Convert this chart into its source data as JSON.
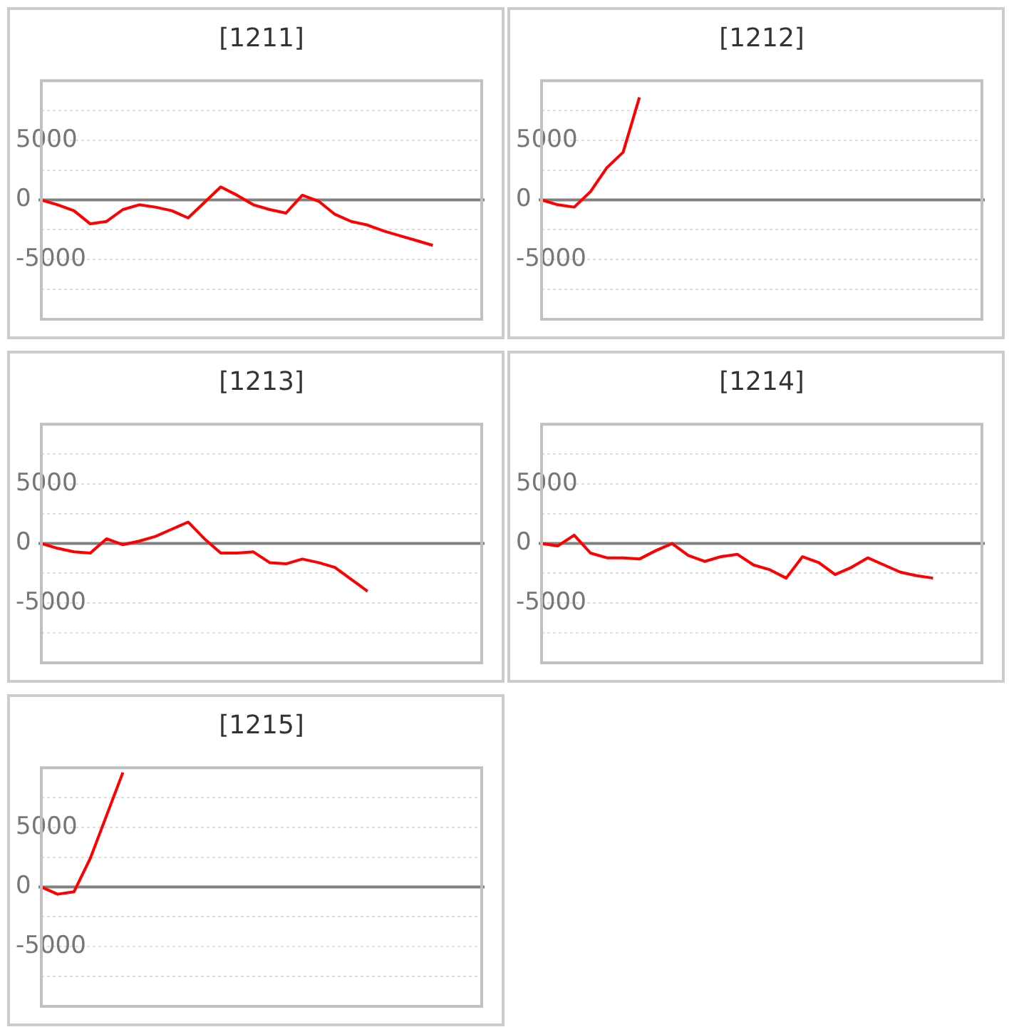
{
  "chart_data": [
    {
      "type": "line",
      "title": "[1211]",
      "categories": [
        null,
        null,
        null,
        null,
        null,
        null,
        null,
        null,
        null,
        null,
        null,
        null,
        null,
        null,
        null,
        null,
        null,
        null,
        null,
        null,
        null,
        null,
        null,
        null,
        null,
        null,
        null,
        null
      ],
      "series": [
        {
          "color": "#ff0000",
          "values": [
            0,
            -400,
            -900,
            -2000,
            -1800,
            -800,
            -400,
            -600,
            -900,
            -1500,
            -200,
            1100,
            400,
            -400,
            -800,
            -1100,
            400,
            -100,
            -1200,
            -1800,
            -2100,
            -2600,
            -3000,
            -3400,
            -3800,
            null,
            null,
            null
          ]
        }
      ],
      "ylim": [
        -10000,
        10000
      ],
      "yticks": [
        {
          "value": -7500,
          "label": null
        },
        -5000,
        {
          "value": -2500,
          "label": null
        },
        0,
        {
          "value": 2500,
          "label": null
        },
        5000,
        {
          "value": 7500,
          "label": null
        }
      ],
      "ref_lines": [
        {
          "axis": "y",
          "value": 0,
          "color": "#808080"
        }
      ],
      "grid": "y",
      "tick_labels": "y",
      "legend": false
    },
    {
      "type": "line",
      "title": "[1212]",
      "categories": [
        null,
        null,
        null,
        null,
        null,
        null,
        null,
        null,
        null,
        null,
        null,
        null,
        null,
        null,
        null,
        null,
        null,
        null,
        null,
        null,
        null,
        null,
        null,
        null,
        null,
        null,
        null,
        null
      ],
      "series": [
        {
          "color": "#ff0000",
          "values": [
            0,
            -400,
            -600,
            700,
            2700,
            4000,
            8600,
            null,
            null,
            null,
            null,
            null,
            null,
            null,
            null,
            null,
            null,
            null,
            null,
            null,
            null,
            null,
            null,
            null,
            null,
            null,
            null,
            null
          ]
        }
      ],
      "ylim": [
        -10000,
        10000
      ],
      "yticks": [
        {
          "value": -7500,
          "label": null
        },
        -5000,
        {
          "value": -2500,
          "label": null
        },
        0,
        {
          "value": 2500,
          "label": null
        },
        5000,
        {
          "value": 7500,
          "label": null
        }
      ],
      "ref_lines": [
        {
          "axis": "y",
          "value": 0,
          "color": "#808080"
        }
      ],
      "grid": "y",
      "tick_labels": "y",
      "legend": false
    },
    {
      "type": "line",
      "title": "[1213]",
      "categories": [
        null,
        null,
        null,
        null,
        null,
        null,
        null,
        null,
        null,
        null,
        null,
        null,
        null,
        null,
        null,
        null,
        null,
        null,
        null,
        null,
        null,
        null,
        null,
        null,
        null,
        null,
        null,
        null
      ],
      "series": [
        {
          "color": "#ff0000",
          "values": [
            0,
            -400,
            -700,
            -800,
            400,
            -100,
            200,
            600,
            1200,
            1800,
            400,
            -800,
            -800,
            -700,
            -1600,
            -1700,
            -1300,
            -1600,
            -2000,
            -3000,
            -4000,
            null,
            null,
            null,
            null,
            null,
            null,
            null
          ]
        }
      ],
      "ylim": [
        -10000,
        10000
      ],
      "yticks": [
        {
          "value": -7500,
          "label": null
        },
        -5000,
        {
          "value": -2500,
          "label": null
        },
        0,
        {
          "value": 2500,
          "label": null
        },
        5000,
        {
          "value": 7500,
          "label": null
        }
      ],
      "ref_lines": [
        {
          "axis": "y",
          "value": 0,
          "color": "#808080"
        }
      ],
      "grid": "y",
      "tick_labels": "y",
      "legend": false
    },
    {
      "type": "line",
      "title": "[1214]",
      "categories": [
        null,
        null,
        null,
        null,
        null,
        null,
        null,
        null,
        null,
        null,
        null,
        null,
        null,
        null,
        null,
        null,
        null,
        null,
        null,
        null,
        null,
        null,
        null,
        null,
        null,
        null,
        null,
        null
      ],
      "series": [
        {
          "color": "#ff0000",
          "values": [
            0,
            -200,
            700,
            -800,
            -1200,
            -1200,
            -1300,
            -600,
            0,
            -1000,
            -1500,
            -1100,
            -900,
            -1800,
            -2200,
            -2900,
            -1100,
            -1600,
            -2600,
            -2000,
            -1200,
            -1800,
            -2400,
            -2700,
            -2900,
            null,
            null,
            null
          ]
        }
      ],
      "ylim": [
        -10000,
        10000
      ],
      "yticks": [
        {
          "value": -7500,
          "label": null
        },
        -5000,
        {
          "value": -2500,
          "label": null
        },
        0,
        {
          "value": 2500,
          "label": null
        },
        5000,
        {
          "value": 7500,
          "label": null
        }
      ],
      "ref_lines": [
        {
          "axis": "y",
          "value": 0,
          "color": "#808080"
        }
      ],
      "grid": "y",
      "tick_labels": "y",
      "legend": false
    },
    {
      "type": "line",
      "title": "[1215]",
      "categories": [
        null,
        null,
        null,
        null,
        null,
        null,
        null,
        null,
        null,
        null,
        null,
        null,
        null,
        null,
        null,
        null,
        null,
        null,
        null,
        null,
        null,
        null,
        null,
        null,
        null,
        null,
        null,
        null
      ],
      "series": [
        {
          "color": "#ff0000",
          "values": [
            0,
            -600,
            -400,
            2400,
            6000,
            9600,
            null,
            null,
            null,
            null,
            null,
            null,
            null,
            null,
            null,
            null,
            null,
            null,
            null,
            null,
            null,
            null,
            null,
            null,
            null,
            null,
            null,
            null
          ]
        }
      ],
      "ylim": [
        -10000,
        10000
      ],
      "yticks": [
        {
          "value": -7500,
          "label": null
        },
        -5000,
        {
          "value": -2500,
          "label": null
        },
        0,
        {
          "value": 2500,
          "label": null
        },
        5000,
        {
          "value": 7500,
          "label": null
        }
      ],
      "ref_lines": [
        {
          "axis": "y",
          "value": 0,
          "color": "#808080"
        }
      ],
      "grid": "y",
      "tick_labels": "y",
      "legend": false
    }
  ]
}
